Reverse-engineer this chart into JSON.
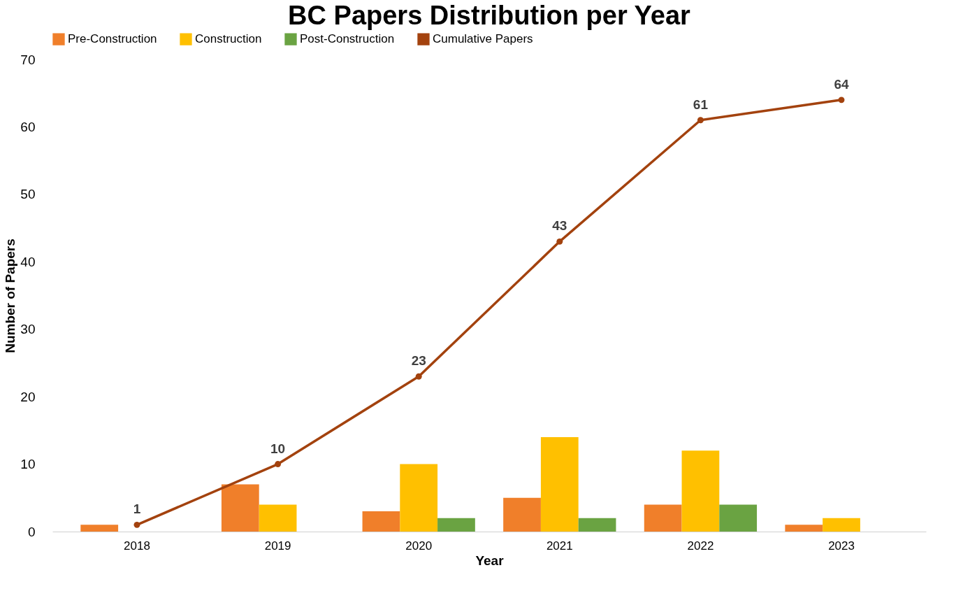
{
  "chart_data": {
    "type": "bar",
    "title": "BC Papers Distribution per Year",
    "xlabel": "Year",
    "ylabel": "Number of Papers",
    "categories": [
      "2018",
      "2019",
      "2020",
      "2021",
      "2022",
      "2023"
    ],
    "series": [
      {
        "name": "Pre-Construction",
        "color": "#f07f2a",
        "values": [
          1,
          7,
          3,
          5,
          4,
          1
        ]
      },
      {
        "name": "Construction",
        "color": "#ffc000",
        "values": [
          null,
          4,
          10,
          14,
          12,
          2
        ]
      },
      {
        "name": "Post-Construction",
        "color": "#6aa342",
        "values": [
          null,
          null,
          2,
          2,
          4,
          null
        ]
      },
      {
        "name": "Cumulative Papers",
        "type": "line",
        "color": "#a3420e",
        "values": [
          1,
          10,
          23,
          43,
          61,
          64
        ],
        "value_labels": [
          "1",
          "10",
          "23",
          "43",
          "61",
          "64"
        ]
      }
    ],
    "ylim": [
      0,
      70
    ],
    "yticks": [
      0,
      10,
      20,
      30,
      40,
      50,
      60,
      70
    ],
    "grid": false,
    "legend": "top",
    "marker": "circle",
    "line_style": "solid"
  }
}
